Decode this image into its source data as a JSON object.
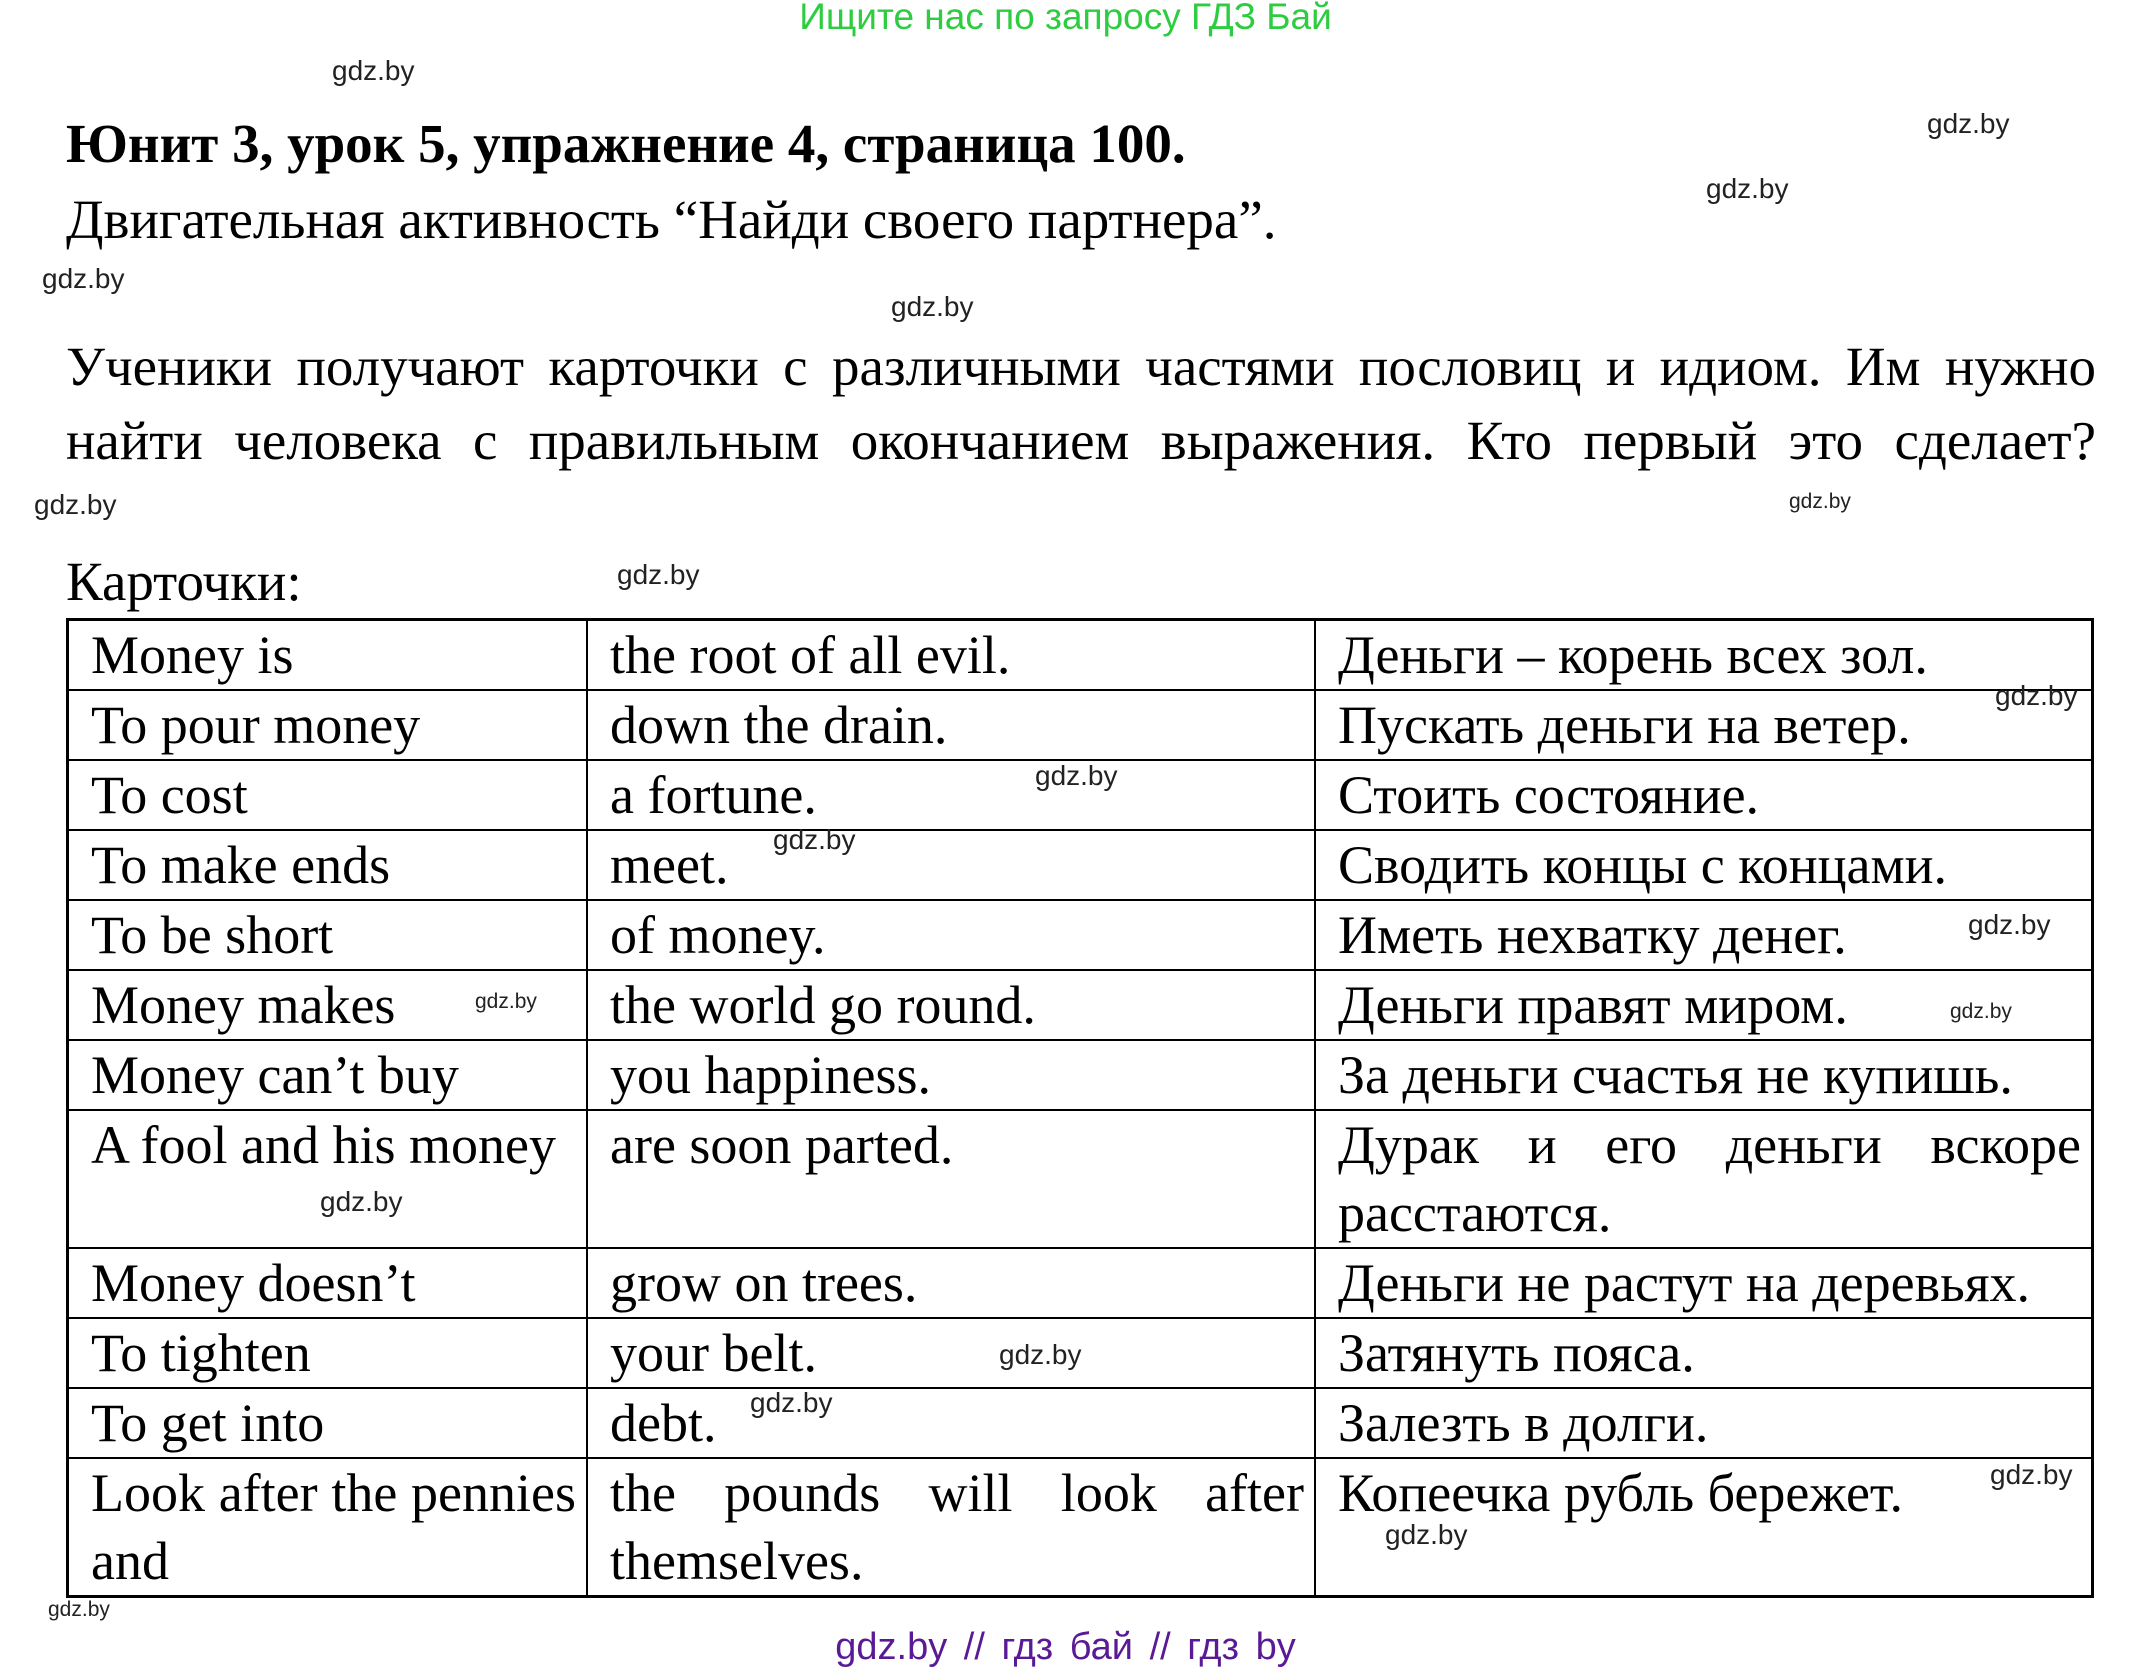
{
  "banner": "Ищите нас по запросу ГДЗ Бай",
  "title": "Юнит 3, урок 5, упражнение 4, страница 100.",
  "subtitle": "Двигательная активность “Найди своего партнера”.",
  "paragraph": [
    "Ученики получают карточки с различными частями пословиц и идиом. Им нужно",
    "найти человека с правильным окончанием выражения. Кто первый это сделает?"
  ],
  "cards_label": "Карточки:",
  "table": {
    "rows": [
      [
        "Money is",
        "the root of all evil.",
        "Деньги – корень всех зол."
      ],
      [
        "To pour money",
        "down the drain.",
        "Пускать деньги на ветер."
      ],
      [
        "To cost",
        "a fortune.",
        "Стоить состояние."
      ],
      [
        "To make ends",
        "meet.",
        "Сводить концы с концами."
      ],
      [
        "To be short",
        "of money.",
        "Иметь нехватку денег."
      ],
      [
        "Money makes",
        "the world go round.",
        "Деньги правят миром."
      ],
      [
        "Money can’t buy",
        "you happiness.",
        "За деньги счастья не купишь."
      ],
      [
        "A fool and his money",
        "are soon parted.",
        "Дурак и его деньги вскоре расстаются."
      ],
      [
        "Money doesn’t",
        "grow on trees.",
        "Деньги не растут на деревьях."
      ],
      [
        "To tighten",
        "your belt.",
        "Затянуть пояса."
      ],
      [
        "To get into",
        "debt.",
        "Залезть в долги."
      ],
      [
        "Look after the pennies and",
        "the pounds will look after themselves.",
        "Копеечка рубль бережет."
      ]
    ]
  },
  "watermark": "gdz.by",
  "footer": "gdz.by // гдз бай // гдз by",
  "colors": {
    "banner": "#2ecc40",
    "footer": "#5a1a96"
  }
}
